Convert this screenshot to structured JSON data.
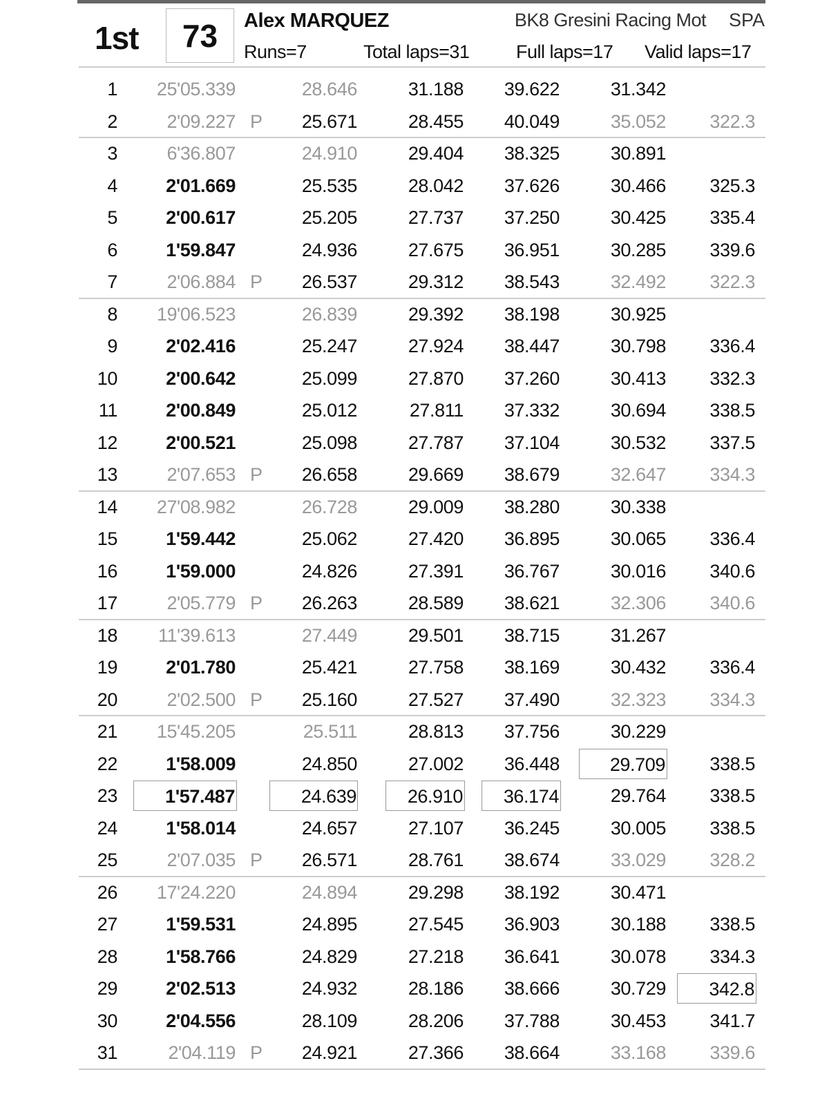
{
  "rider": {
    "position": "1st",
    "number": "73",
    "name": "Alex MARQUEZ",
    "team": "BK8 Gresini Racing Mot",
    "nation": "SPA",
    "runs": "Runs=7",
    "total_laps": "Total laps=31",
    "full_laps": "Full laps=17",
    "valid_laps": "Valid laps=17"
  },
  "pit_marker": "P",
  "run_breaks_after_laps": [
    2,
    7,
    13,
    17,
    20,
    25,
    31
  ],
  "laps": [
    {
      "lap": "1",
      "time": "25'05.339",
      "type": "out",
      "s1": "28.646",
      "s2": "31.188",
      "s3": "39.622",
      "s4": "31.342",
      "speed": ""
    },
    {
      "lap": "2",
      "time": "2'09.227",
      "type": "pit",
      "s1": "25.671",
      "s2": "28.455",
      "s3": "40.049",
      "s4": "35.052",
      "speed": "322.3"
    },
    {
      "lap": "3",
      "time": "6'36.807",
      "type": "out",
      "s1": "24.910",
      "s2": "29.404",
      "s3": "38.325",
      "s4": "30.891",
      "speed": ""
    },
    {
      "lap": "4",
      "time": "2'01.669",
      "type": "normal",
      "s1": "25.535",
      "s2": "28.042",
      "s3": "37.626",
      "s4": "30.466",
      "speed": "325.3"
    },
    {
      "lap": "5",
      "time": "2'00.617",
      "type": "normal",
      "s1": "25.205",
      "s2": "27.737",
      "s3": "37.250",
      "s4": "30.425",
      "speed": "335.4"
    },
    {
      "lap": "6",
      "time": "1'59.847",
      "type": "normal",
      "s1": "24.936",
      "s2": "27.675",
      "s3": "36.951",
      "s4": "30.285",
      "speed": "339.6"
    },
    {
      "lap": "7",
      "time": "2'06.884",
      "type": "pit",
      "s1": "26.537",
      "s2": "29.312",
      "s3": "38.543",
      "s4": "32.492",
      "speed": "322.3"
    },
    {
      "lap": "8",
      "time": "19'06.523",
      "type": "out",
      "s1": "26.839",
      "s2": "29.392",
      "s3": "38.198",
      "s4": "30.925",
      "speed": ""
    },
    {
      "lap": "9",
      "time": "2'02.416",
      "type": "normal",
      "s1": "25.247",
      "s2": "27.924",
      "s3": "38.447",
      "s4": "30.798",
      "speed": "336.4"
    },
    {
      "lap": "10",
      "time": "2'00.642",
      "type": "normal",
      "s1": "25.099",
      "s2": "27.870",
      "s3": "37.260",
      "s4": "30.413",
      "speed": "332.3"
    },
    {
      "lap": "11",
      "time": "2'00.849",
      "type": "normal",
      "s1": "25.012",
      "s2": "27.811",
      "s3": "37.332",
      "s4": "30.694",
      "speed": "338.5"
    },
    {
      "lap": "12",
      "time": "2'00.521",
      "type": "normal",
      "s1": "25.098",
      "s2": "27.787",
      "s3": "37.104",
      "s4": "30.532",
      "speed": "337.5"
    },
    {
      "lap": "13",
      "time": "2'07.653",
      "type": "pit",
      "s1": "26.658",
      "s2": "29.669",
      "s3": "38.679",
      "s4": "32.647",
      "speed": "334.3"
    },
    {
      "lap": "14",
      "time": "27'08.982",
      "type": "out",
      "s1": "26.728",
      "s2": "29.009",
      "s3": "38.280",
      "s4": "30.338",
      "speed": ""
    },
    {
      "lap": "15",
      "time": "1'59.442",
      "type": "normal",
      "s1": "25.062",
      "s2": "27.420",
      "s3": "36.895",
      "s4": "30.065",
      "speed": "336.4"
    },
    {
      "lap": "16",
      "time": "1'59.000",
      "type": "normal",
      "s1": "24.826",
      "s2": "27.391",
      "s3": "36.767",
      "s4": "30.016",
      "speed": "340.6"
    },
    {
      "lap": "17",
      "time": "2'05.779",
      "type": "pit",
      "s1": "26.263",
      "s2": "28.589",
      "s3": "38.621",
      "s4": "32.306",
      "speed": "340.6"
    },
    {
      "lap": "18",
      "time": "11'39.613",
      "type": "out",
      "s1": "27.449",
      "s2": "29.501",
      "s3": "38.715",
      "s4": "31.267",
      "speed": ""
    },
    {
      "lap": "19",
      "time": "2'01.780",
      "type": "normal",
      "s1": "25.421",
      "s2": "27.758",
      "s3": "38.169",
      "s4": "30.432",
      "speed": "336.4"
    },
    {
      "lap": "20",
      "time": "2'02.500",
      "type": "pit",
      "s1": "25.160",
      "s2": "27.527",
      "s3": "37.490",
      "s4": "32.323",
      "speed": "334.3"
    },
    {
      "lap": "21",
      "time": "15'45.205",
      "type": "out",
      "s1": "25.511",
      "s2": "28.813",
      "s3": "37.756",
      "s4": "30.229",
      "speed": ""
    },
    {
      "lap": "22",
      "time": "1'58.009",
      "type": "normal",
      "s1": "24.850",
      "s2": "27.002",
      "s3": "36.448",
      "s4": "29.709",
      "speed": "338.5",
      "best": [
        "s4"
      ]
    },
    {
      "lap": "23",
      "time": "1'57.487",
      "type": "normal",
      "s1": "24.639",
      "s2": "26.910",
      "s3": "36.174",
      "s4": "29.764",
      "speed": "338.5",
      "best": [
        "time",
        "s1",
        "s2",
        "s3"
      ]
    },
    {
      "lap": "24",
      "time": "1'58.014",
      "type": "normal",
      "s1": "24.657",
      "s2": "27.107",
      "s3": "36.245",
      "s4": "30.005",
      "speed": "338.5"
    },
    {
      "lap": "25",
      "time": "2'07.035",
      "type": "pit",
      "s1": "26.571",
      "s2": "28.761",
      "s3": "38.674",
      "s4": "33.029",
      "speed": "328.2"
    },
    {
      "lap": "26",
      "time": "17'24.220",
      "type": "out",
      "s1": "24.894",
      "s2": "29.298",
      "s3": "38.192",
      "s4": "30.471",
      "speed": ""
    },
    {
      "lap": "27",
      "time": "1'59.531",
      "type": "normal",
      "s1": "24.895",
      "s2": "27.545",
      "s3": "36.903",
      "s4": "30.188",
      "speed": "338.5"
    },
    {
      "lap": "28",
      "time": "1'58.766",
      "type": "normal",
      "s1": "24.829",
      "s2": "27.218",
      "s3": "36.641",
      "s4": "30.078",
      "speed": "334.3"
    },
    {
      "lap": "29",
      "time": "2'02.513",
      "type": "normal",
      "s1": "24.932",
      "s2": "28.186",
      "s3": "38.666",
      "s4": "30.729",
      "speed": "342.8",
      "best": [
        "speed"
      ]
    },
    {
      "lap": "30",
      "time": "2'04.556",
      "type": "normal",
      "s1": "28.109",
      "s2": "28.206",
      "s3": "37.788",
      "s4": "30.453",
      "speed": "341.7"
    },
    {
      "lap": "31",
      "time": "2'04.119",
      "type": "pit",
      "s1": "24.921",
      "s2": "27.366",
      "s3": "38.664",
      "s4": "33.168",
      "speed": "339.6"
    }
  ]
}
